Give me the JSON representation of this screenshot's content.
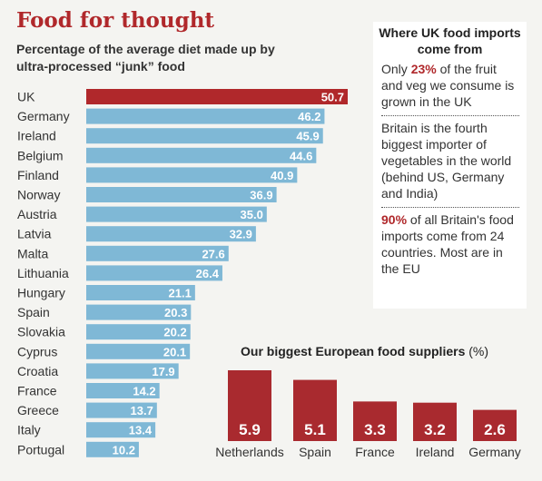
{
  "title": "Food for thought",
  "subtitle": "Percentage of the average diet made up by ultra-processed “junk” food",
  "colors": {
    "highlight": "#b0282b",
    "bar": "#7fb8d6",
    "supplier": "#a92a2f"
  },
  "chart_data": [
    {
      "type": "bar",
      "orientation": "horizontal",
      "title": "Percentage of the average diet made up by ultra-processed “junk” food",
      "categories": [
        "UK",
        "Germany",
        "Ireland",
        "Belgium",
        "Finland",
        "Norway",
        "Austria",
        "Latvia",
        "Malta",
        "Lithuania",
        "Hungary",
        "Spain",
        "Slovakia",
        "Cyprus",
        "Croatia",
        "France",
        "Greece",
        "Italy",
        "Portugal"
      ],
      "values": [
        50.7,
        46.2,
        45.9,
        44.6,
        40.9,
        36.9,
        35.0,
        32.9,
        27.6,
        26.4,
        21.1,
        20.3,
        20.2,
        20.1,
        17.9,
        14.2,
        13.7,
        13.4,
        10.2
      ],
      "value_labels": [
        "50.7",
        "46.2",
        "45.9",
        "44.6",
        "40.9",
        "36.9",
        "35.0",
        "32.9",
        "27.6",
        "26.4",
        "21.1",
        "20.3",
        "20.2",
        "20.1",
        "17.9",
        "14.2",
        "13.7",
        "13.4",
        "10.2"
      ],
      "xlim": [
        0,
        50.7
      ]
    },
    {
      "type": "bar",
      "title": "Our biggest European food suppliers",
      "unit": "(%)",
      "categories": [
        "Netherlands",
        "Spain",
        "France",
        "Ireland",
        "Germany"
      ],
      "values": [
        5.9,
        5.1,
        3.3,
        3.2,
        2.6
      ],
      "value_labels": [
        "5.9",
        "5.1",
        "3.3",
        "3.2",
        "2.6"
      ],
      "ylim": [
        0,
        5.9
      ]
    }
  ],
  "sidebar": {
    "title": "Where UK food imports come from",
    "fact1": {
      "highlight": "23%",
      "pre": "Only ",
      "post": " of the fruit and veg we consume is grown in the UK"
    },
    "fact2": "Britain is the fourth biggest importer of vegetables in the world (behind US, Germany and India)",
    "fact3": {
      "highlight": "90%",
      "post": " of all Britain's food imports come from 24 countries. Most are in the EU"
    }
  }
}
